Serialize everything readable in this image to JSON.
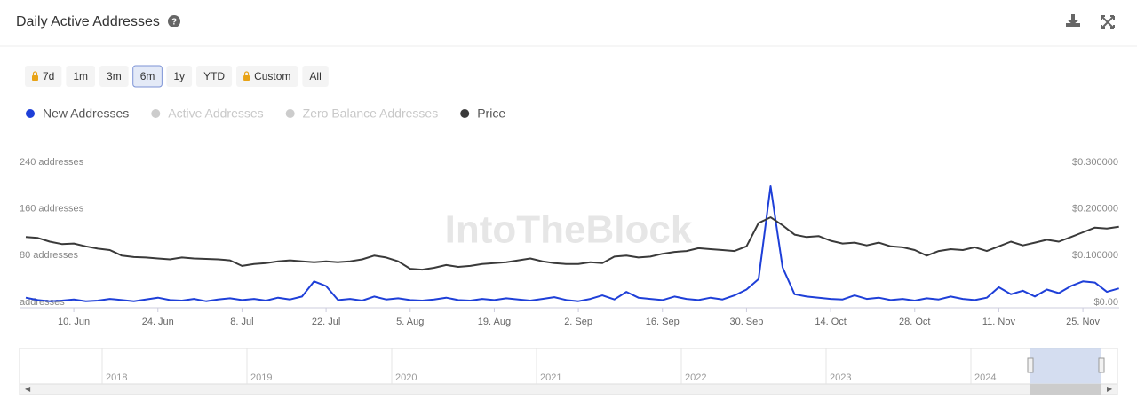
{
  "header": {
    "title": "Daily Active Addresses"
  },
  "range_buttons": [
    {
      "label": "7d",
      "locked": true
    },
    {
      "label": "1m",
      "locked": false
    },
    {
      "label": "3m",
      "locked": false
    },
    {
      "label": "6m",
      "locked": false,
      "selected": true
    },
    {
      "label": "1y",
      "locked": false
    },
    {
      "label": "YTD",
      "locked": false
    },
    {
      "label": "Custom",
      "locked": true
    },
    {
      "label": "All",
      "locked": false
    }
  ],
  "watermark": "IntoTheBlock",
  "chart_data": {
    "type": "line",
    "categories": [
      null,
      null,
      null,
      null,
      "10. Jun",
      null,
      null,
      null,
      null,
      null,
      null,
      "24. Jun",
      null,
      null,
      null,
      null,
      null,
      null,
      "8. Jul",
      null,
      null,
      null,
      null,
      null,
      null,
      "22. Jul",
      null,
      null,
      null,
      null,
      null,
      null,
      "5. Aug",
      null,
      null,
      null,
      null,
      null,
      null,
      "19. Aug",
      null,
      null,
      null,
      null,
      null,
      null,
      "2. Sep",
      null,
      null,
      null,
      null,
      null,
      null,
      "16. Sep",
      null,
      null,
      null,
      null,
      null,
      null,
      "30. Sep",
      null,
      null,
      null,
      null,
      null,
      null,
      "14. Oct",
      null,
      null,
      null,
      null,
      null,
      null,
      "28. Oct",
      null,
      null,
      null,
      null,
      null,
      null,
      "11. Nov",
      null,
      null,
      null,
      null,
      null,
      null,
      "25. Nov",
      null,
      null,
      null
    ],
    "series": [
      {
        "name": "New Addresses",
        "color": "#1e3fd8",
        "visible": true,
        "values": [
          8,
          4,
          2,
          3,
          5,
          2,
          3,
          6,
          4,
          2,
          5,
          8,
          4,
          3,
          6,
          2,
          5,
          7,
          4,
          6,
          3,
          8,
          5,
          10,
          36,
          28,
          4,
          6,
          3,
          10,
          5,
          7,
          4,
          3,
          5,
          8,
          4,
          3,
          6,
          4,
          7,
          5,
          3,
          6,
          9,
          4,
          2,
          6,
          12,
          5,
          18,
          8,
          6,
          4,
          10,
          6,
          4,
          8,
          5,
          12,
          22,
          40,
          199,
          60,
          14,
          10,
          8,
          6,
          5,
          12,
          6,
          8,
          4,
          6,
          3,
          7,
          5,
          10,
          6,
          4,
          8,
          26,
          14,
          20,
          10,
          22,
          16,
          28,
          36,
          34,
          18,
          24
        ]
      },
      {
        "name": "Active Addresses",
        "color": "#cccccc",
        "visible": false
      },
      {
        "name": "Zero Balance Addresses",
        "color": "#cccccc",
        "visible": false
      },
      {
        "name": "Price",
        "color": "#3a3a3a",
        "visible": true,
        "axis": "y2",
        "values": [
          0.14,
          0.138,
          0.13,
          0.125,
          0.126,
          0.12,
          0.115,
          0.112,
          0.1,
          0.097,
          0.096,
          0.094,
          0.092,
          0.096,
          0.094,
          0.093,
          0.092,
          0.09,
          0.078,
          0.082,
          0.084,
          0.088,
          0.09,
          0.088,
          0.086,
          0.088,
          0.086,
          0.088,
          0.092,
          0.1,
          0.096,
          0.088,
          0.072,
          0.07,
          0.074,
          0.08,
          0.076,
          0.078,
          0.082,
          0.084,
          0.086,
          0.09,
          0.094,
          0.088,
          0.084,
          0.082,
          0.082,
          0.086,
          0.084,
          0.098,
          0.1,
          0.096,
          0.098,
          0.104,
          0.108,
          0.11,
          0.116,
          0.114,
          0.112,
          0.11,
          0.12,
          0.17,
          0.182,
          0.165,
          0.145,
          0.14,
          0.142,
          0.132,
          0.126,
          0.128,
          0.122,
          0.128,
          0.12,
          0.118,
          0.112,
          0.1,
          0.11,
          0.114,
          0.112,
          0.118,
          0.11,
          0.12,
          0.13,
          0.122,
          0.128,
          0.134,
          0.13,
          0.14,
          0.15,
          0.16,
          0.158,
          0.162
        ]
      }
    ],
    "ylim": [
      0,
      240
    ],
    "yticks": [
      {
        "value": 0,
        "label": "addresses"
      },
      {
        "value": 80,
        "label": "80 addresses"
      },
      {
        "value": 160,
        "label": "160 addresses"
      },
      {
        "value": 240,
        "label": "240 addresses"
      }
    ],
    "y2lim": [
      0,
      0.3
    ],
    "y2ticks": [
      {
        "value": 0,
        "label": "$0.00"
      },
      {
        "value": 0.1,
        "label": "$0.100000"
      },
      {
        "value": 0.2,
        "label": "$0.200000"
      },
      {
        "value": 0.3,
        "label": "$0.300000"
      }
    ],
    "grid": false
  },
  "navigator": {
    "labels": [
      "2018",
      "2019",
      "2020",
      "2021",
      "2022",
      "2023",
      "2024"
    ]
  }
}
